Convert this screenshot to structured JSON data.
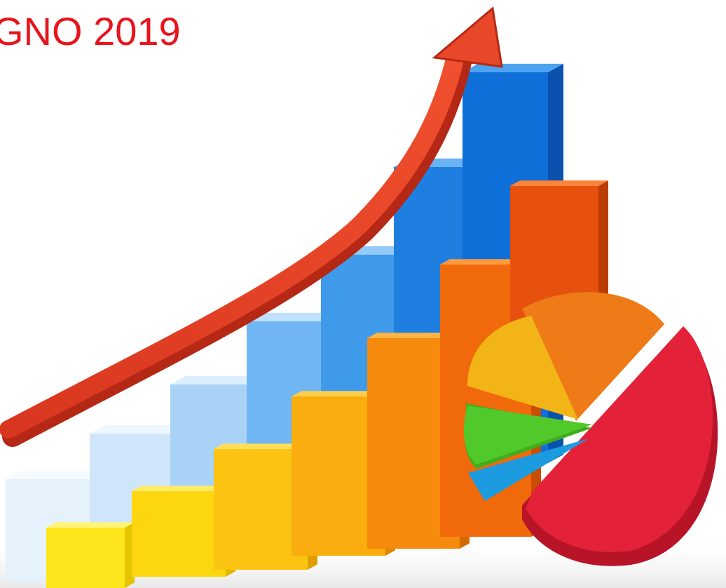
{
  "title": "GNO 2019"
}
